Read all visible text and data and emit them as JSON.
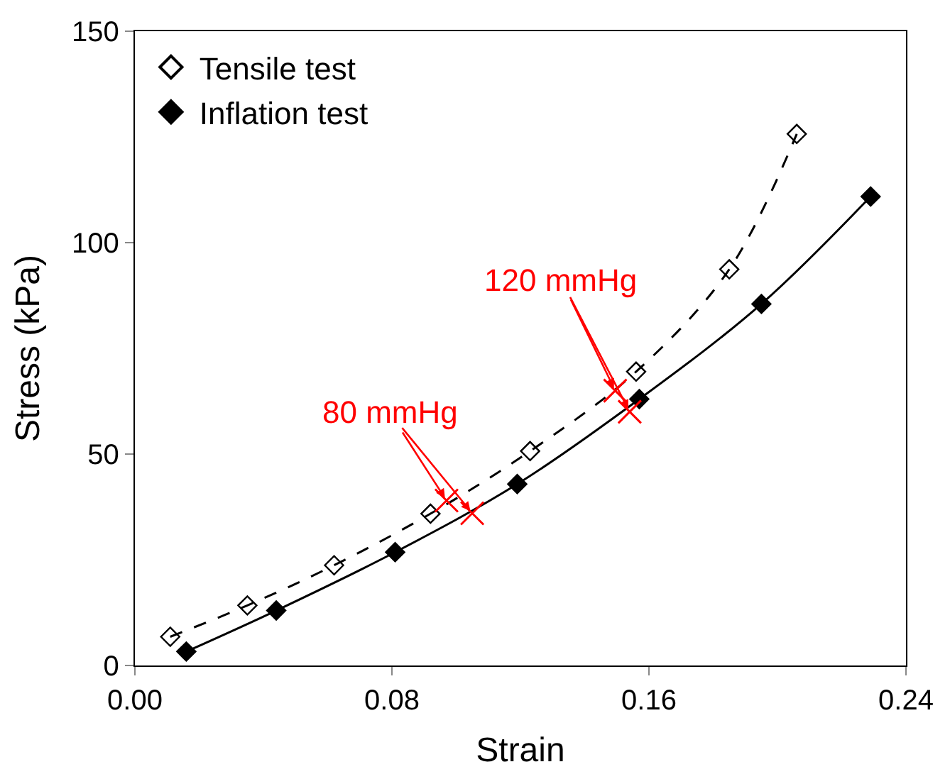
{
  "chart_data": {
    "type": "line",
    "xlabel": "Strain",
    "ylabel": "Stress (kPa)",
    "xlim": [
      0,
      0.24
    ],
    "xticks": [
      {
        "value": 0,
        "label": "0.00"
      },
      {
        "value": 0.08,
        "label": "0.08"
      },
      {
        "value": 0.16,
        "label": "0.16"
      },
      {
        "value": 0.24,
        "label": "0.24"
      }
    ],
    "ylim": [
      0,
      150
    ],
    "yticks": [
      0,
      50,
      100,
      150
    ],
    "legend": "top left",
    "series": [
      {
        "name": "Tensile test",
        "color": "#000000",
        "marker": "diamond-open",
        "line_style": "dashed",
        "x": [
          0.011,
          0.035,
          0.062,
          0.092,
          0.123,
          0.156,
          0.185,
          0.206
        ],
        "values": [
          6.8,
          14.2,
          23.7,
          35.9,
          50.7,
          69.5,
          93.7,
          125.7
        ]
      },
      {
        "name": "Inflation test",
        "color": "#000000",
        "marker": "diamond",
        "line_style": "solid",
        "x": [
          0.016,
          0.044,
          0.081,
          0.119,
          0.157,
          0.195,
          0.229
        ],
        "values": [
          3.3,
          13.0,
          26.8,
          42.9,
          63.0,
          85.5,
          110.9
        ]
      },
      {
        "type": "scatter",
        "color": "#ff0000",
        "marker": "cross",
        "x": [
          0.097,
          0.105,
          0.1495,
          0.154
        ],
        "values": [
          39,
          36,
          65,
          60
        ]
      }
    ],
    "annotations": [
      {
        "text": "80 mmHg",
        "x": 0.097,
        "y": 39
      },
      {
        "text": "120 mmHg",
        "x": 0.1495,
        "y": 65
      }
    ]
  }
}
